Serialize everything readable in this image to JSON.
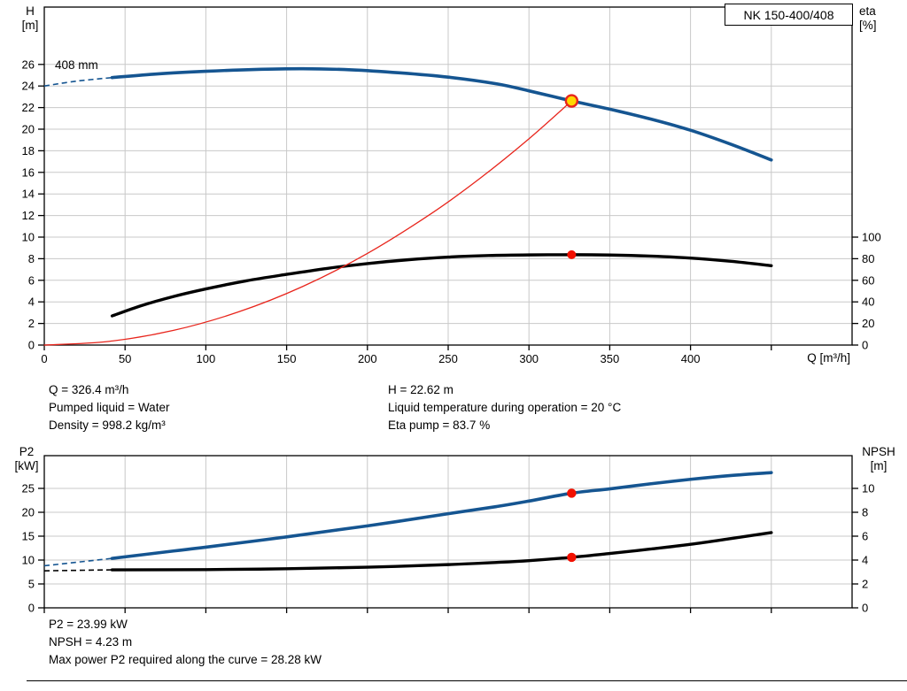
{
  "pump_model": "NK 150-400/408",
  "chart_data": [
    {
      "type": "line",
      "name": "qh-efficiency-chart",
      "title": "NK 150-400/408",
      "annotation": "408 mm",
      "x_axis": {
        "max": 500,
        "tick_values": [
          0,
          50,
          100,
          150,
          200,
          250,
          300,
          350,
          400,
          450
        ],
        "labeled_ticks": [
          0,
          50,
          100,
          150,
          200,
          250,
          300,
          350,
          400
        ],
        "label": "Q [m³/h]"
      },
      "ylabel_left_lines": [
        "H",
        "[m]"
      ],
      "ylabel_right_lines": [
        "eta",
        "[%]"
      ],
      "y_left": {
        "label": "H [m]",
        "ticks": [
          0,
          2,
          4,
          6,
          8,
          10,
          12,
          14,
          16,
          18,
          20,
          22,
          24,
          26
        ]
      },
      "y_right": {
        "label": "eta [%]",
        "ticks": [
          0,
          20,
          40,
          60,
          80,
          100
        ]
      },
      "grid_color": "#c8c8c8",
      "series": [
        {
          "name": "head-curve",
          "legend": "408 mm",
          "axis": "left",
          "color": "#155591",
          "width": 3.6,
          "lead_width": 1.6,
          "lead_dash": [
            [
              0,
              24.0
            ],
            [
              20,
              24.45
            ],
            [
              42,
              24.78
            ]
          ],
          "points": [
            [
              42,
              24.78
            ],
            [
              70,
              25.12
            ],
            [
              100,
              25.36
            ],
            [
              130,
              25.53
            ],
            [
              160,
              25.6
            ],
            [
              190,
              25.5
            ],
            [
              220,
              25.22
            ],
            [
              250,
              24.82
            ],
            [
              280,
              24.2
            ],
            [
              300,
              23.55
            ],
            [
              326.4,
              22.62
            ],
            [
              350,
              21.85
            ],
            [
              375,
              20.95
            ],
            [
              400,
              19.9
            ],
            [
              425,
              18.6
            ],
            [
              450,
              17.15
            ]
          ]
        },
        {
          "name": "efficiency-curve",
          "axis": "right",
          "color": "#000000",
          "width": 3.4,
          "points": [
            [
              42,
              27
            ],
            [
              60,
              36.5
            ],
            [
              80,
              45
            ],
            [
              100,
              52
            ],
            [
              125,
              59.5
            ],
            [
              150,
              65.5
            ],
            [
              175,
              71
            ],
            [
              200,
              75.5
            ],
            [
              225,
              79
            ],
            [
              250,
              81.5
            ],
            [
              275,
              82.9
            ],
            [
              300,
              83.5
            ],
            [
              326.4,
              83.7
            ],
            [
              350,
              83.4
            ],
            [
              375,
              82.4
            ],
            [
              400,
              80.6
            ],
            [
              425,
              77.6
            ],
            [
              450,
              73.5
            ]
          ]
        },
        {
          "name": "system-curve",
          "axis": "left",
          "color": "#e8251c",
          "width": 1.3,
          "points": [
            [
              0,
              0
            ],
            [
              40,
              0.34
            ],
            [
              80,
              1.36
            ],
            [
              120,
              3.06
            ],
            [
              160,
              5.43
            ],
            [
              200,
              8.49
            ],
            [
              240,
              12.23
            ],
            [
              270,
              15.48
            ],
            [
              300,
              19.11
            ],
            [
              326.4,
              22.62
            ]
          ]
        }
      ],
      "markers": [
        {
          "name": "duty-point-marker",
          "q": 326.4,
          "v": 22.62,
          "axis": "left",
          "r": 6.5,
          "fill": "#ffd800",
          "stroke": "#e8251c",
          "stroke_width": 2.4,
          "interactable": true
        },
        {
          "name": "efficiency-point-marker",
          "q": 326.4,
          "v": 83.7,
          "axis": "right",
          "r": 5,
          "fill": "#f21000"
        }
      ]
    },
    {
      "type": "line",
      "name": "p2-npsh-chart",
      "x_axis": {
        "max": 500,
        "tick_values": [
          0,
          50,
          100,
          150,
          200,
          250,
          300,
          350,
          400,
          450
        ],
        "labeled_ticks": []
      },
      "ylabel_left_lines": [
        "P2",
        "[kW]"
      ],
      "ylabel_right_lines": [
        "NPSH",
        "[m]"
      ],
      "y_left": {
        "label": "P2 [kW]",
        "ticks": [
          0,
          5,
          10,
          15,
          20,
          25
        ]
      },
      "y_right": {
        "label": "NPSH [m]",
        "ticks": [
          0,
          2,
          4,
          6,
          8,
          10
        ]
      },
      "grid_color": "#c8c8c8",
      "series": [
        {
          "name": "p2-curve",
          "axis": "left",
          "color": "#155591",
          "width": 3.6,
          "lead_width": 1.6,
          "lead_dash": [
            [
              0,
              8.8
            ],
            [
              42,
              10.35
            ]
          ],
          "points": [
            [
              42,
              10.35
            ],
            [
              80,
              11.9
            ],
            [
              100,
              12.7
            ],
            [
              150,
              14.85
            ],
            [
              200,
              17.15
            ],
            [
              250,
              19.7
            ],
            [
              280,
              21.2
            ],
            [
              300,
              22.35
            ],
            [
              326.4,
              23.99
            ],
            [
              350,
              24.9
            ],
            [
              375,
              25.95
            ],
            [
              400,
              26.9
            ],
            [
              425,
              27.7
            ],
            [
              450,
              28.3
            ]
          ]
        },
        {
          "name": "npsh-curve",
          "axis": "right",
          "color": "#000000",
          "width": 3.4,
          "lead_width": 1.6,
          "lead_dash": [
            [
              0,
              3.1
            ],
            [
              42,
              3.18
            ]
          ],
          "points": [
            [
              42,
              3.18
            ],
            [
              100,
              3.2
            ],
            [
              150,
              3.27
            ],
            [
              200,
              3.4
            ],
            [
              250,
              3.62
            ],
            [
              280,
              3.8
            ],
            [
              300,
              3.95
            ],
            [
              326.4,
              4.23
            ],
            [
              350,
              4.55
            ],
            [
              375,
              4.92
            ],
            [
              400,
              5.32
            ],
            [
              425,
              5.8
            ],
            [
              450,
              6.3
            ]
          ]
        }
      ],
      "markers": [
        {
          "name": "p2-point-marker",
          "q": 326.4,
          "v": 23.99,
          "axis": "left",
          "r": 5.2,
          "fill": "#f21000"
        },
        {
          "name": "npsh-point-marker",
          "q": 326.4,
          "v": 4.23,
          "axis": "right",
          "r": 5.2,
          "fill": "#f21000"
        }
      ]
    }
  ],
  "operating_point": {
    "q": "Q = 326.4 m³/h",
    "h": "H = 22.62 m",
    "pumped_liquid": "Pumped liquid = Water",
    "liquid_temperature": "Liquid temperature during operation = 20 °C",
    "density": "Density = 998.2 kg/m³",
    "eta_pump": "Eta pump = 83.7 %",
    "p2": "P2 = 23.99 kW",
    "npsh": "NPSH = 4.23 m",
    "max_power": "Max power P2 required along the curve = 28.28 kW"
  }
}
